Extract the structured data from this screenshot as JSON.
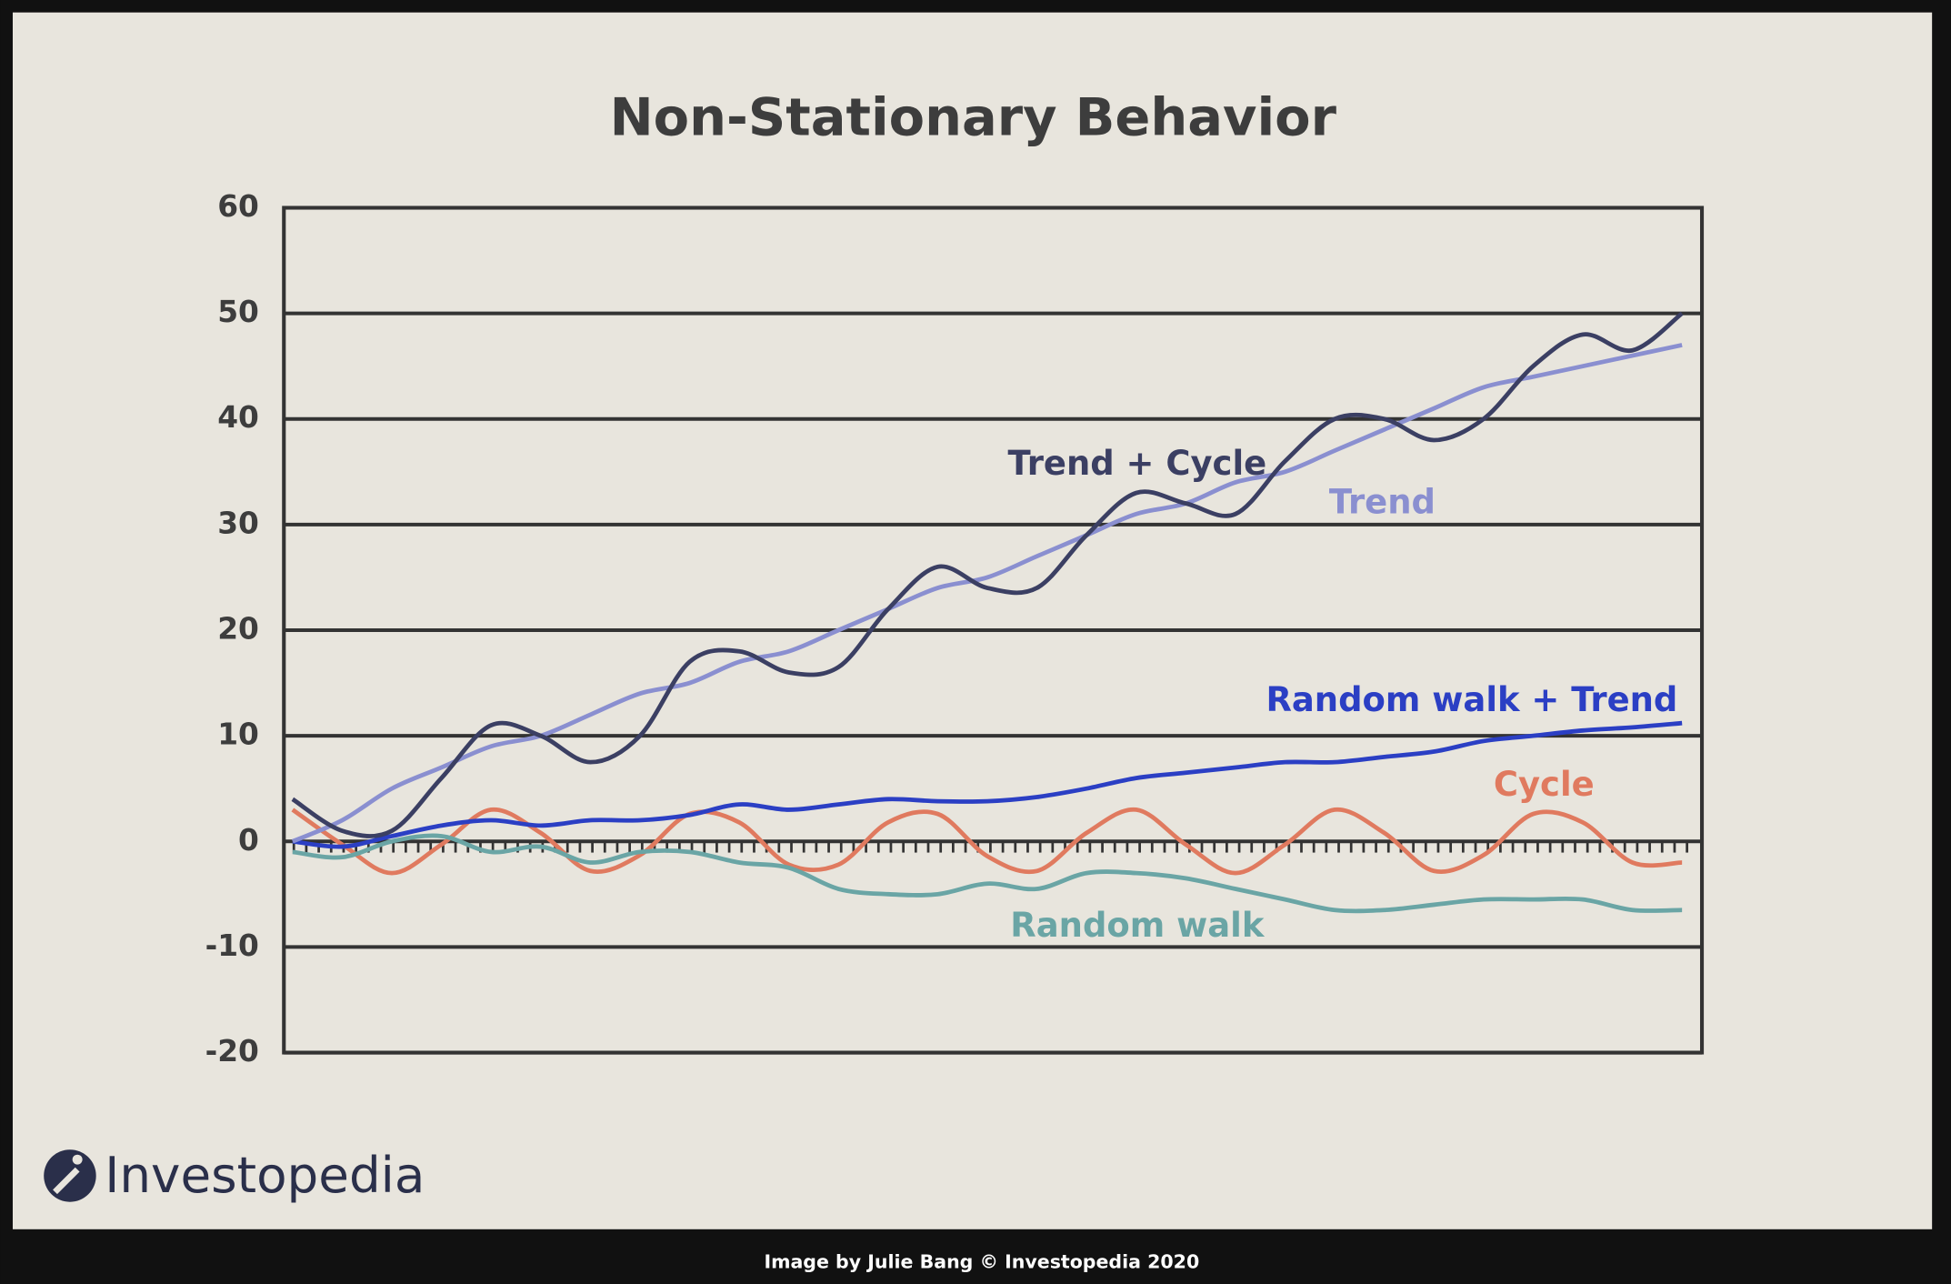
{
  "chart_data": {
    "type": "line",
    "title": "Non-Stationary Behavior",
    "ylim": [
      -20,
      60
    ],
    "yticks": [
      -20,
      -10,
      0,
      10,
      20,
      30,
      40,
      50,
      60
    ],
    "grid": true,
    "series": [
      {
        "name": "Trend + Cycle",
        "color": "#3b3f63",
        "values": [
          4,
          1,
          1,
          6,
          11,
          10,
          7.5,
          10,
          17,
          18,
          16,
          16.5,
          22,
          26,
          24,
          24,
          29,
          33,
          32,
          31,
          36,
          40,
          40,
          38,
          40,
          45,
          48,
          46.5,
          50
        ]
      },
      {
        "name": "Trend",
        "color": "#8a8fd0",
        "values": [
          0,
          2,
          5,
          7,
          9,
          10,
          12,
          14,
          15,
          17,
          18,
          20,
          22,
          24,
          25,
          27,
          29,
          31,
          32,
          34,
          35,
          37,
          39,
          41,
          43,
          44,
          45,
          46,
          47
        ]
      },
      {
        "name": "Random walk + Trend",
        "color": "#2b3fc4",
        "values": [
          0,
          -0.5,
          0.5,
          1.5,
          2,
          1.5,
          2,
          2,
          2.5,
          3.5,
          3,
          3.5,
          4,
          3.8,
          3.8,
          4.2,
          5,
          6,
          6.5,
          7,
          7.5,
          7.5,
          8,
          8.5,
          9.5,
          10,
          10.5,
          10.8,
          11.2
        ]
      },
      {
        "name": "Cycle",
        "color": "#e07a5f",
        "values": [
          3,
          -0.3,
          -3,
          -0.3,
          3,
          0.8,
          -2.8,
          -1.3,
          2.6,
          1.8,
          -2.2,
          -2.2,
          1.8,
          2.6,
          -1.4,
          -2.8,
          0.8,
          3,
          -0.3,
          -3,
          -0.3,
          3,
          0.8,
          -2.8,
          -1.3,
          2.6,
          1.8,
          -2,
          -2
        ]
      },
      {
        "name": "Random walk",
        "color": "#6aa5a5",
        "values": [
          -1,
          -1.5,
          0,
          0.5,
          -1,
          -0.5,
          -2,
          -1,
          -1,
          -2,
          -2.5,
          -4.5,
          -5,
          -5,
          -4,
          -4.5,
          -3,
          -3,
          -3.5,
          -4.5,
          -5.5,
          -6.5,
          -6.5,
          -6,
          -5.5,
          -5.5,
          -5.5,
          -6.5,
          -6.5
        ]
      }
    ]
  },
  "logo": "Investopedia",
  "caption": "Image by Julie Bang © Investopedia 2020"
}
